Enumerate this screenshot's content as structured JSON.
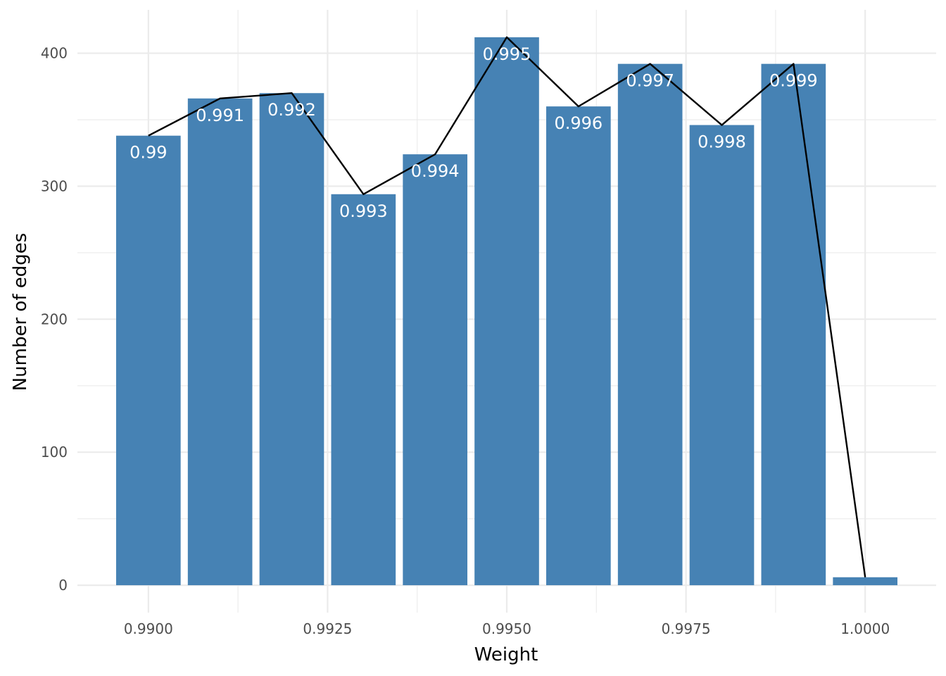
{
  "chart_data": {
    "type": "bar",
    "title": "",
    "xlabel": "Weight",
    "ylabel": "Number of edges",
    "x": [
      0.99,
      0.991,
      0.992,
      0.993,
      0.994,
      0.995,
      0.996,
      0.997,
      0.998,
      0.999,
      1.0
    ],
    "values": [
      338,
      366,
      370,
      294,
      324,
      412,
      360,
      392,
      346,
      392,
      6
    ],
    "bar_labels": [
      "0.99",
      "0.991",
      "0.992",
      "0.993",
      "0.994",
      "0.995",
      "0.996",
      "0.997",
      "0.998",
      "0.999",
      ""
    ],
    "overlay_line": {
      "x": [
        0.99,
        0.991,
        0.992,
        0.993,
        0.994,
        0.995,
        0.996,
        0.997,
        0.998,
        0.999,
        1.0
      ],
      "values": [
        338,
        366,
        370,
        294,
        324,
        412,
        360,
        392,
        346,
        392,
        6
      ],
      "color": "#000000"
    },
    "xlim": [
      0.98901,
      1.00099
    ],
    "ylim": [
      -20.6,
      432.6
    ],
    "x_ticks": [
      0.99,
      0.9925,
      0.995,
      0.9975,
      1.0
    ],
    "x_tick_labels": [
      "0.9900",
      "0.9925",
      "0.9950",
      "0.9975",
      "1.0000"
    ],
    "y_ticks": [
      0,
      100,
      200,
      300,
      400
    ],
    "y_tick_labels": [
      "0",
      "100",
      "200",
      "300",
      "400"
    ],
    "grid": true,
    "legend": "none",
    "bar_color": "#4682B4",
    "grid_color": "#EBEBEB"
  }
}
